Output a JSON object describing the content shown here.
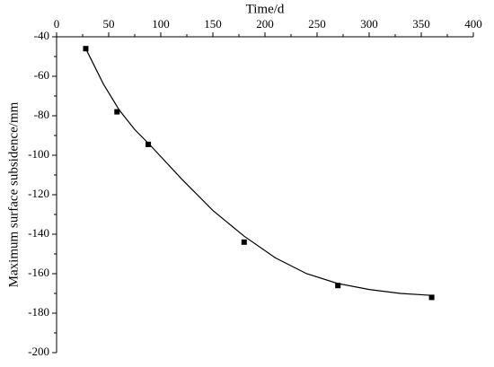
{
  "chart_data": {
    "type": "scatter",
    "x_label": "Time/d",
    "y_label": "Maximum surface subsidence/mm",
    "x": [
      28,
      58,
      88,
      180,
      270,
      360
    ],
    "series": [
      {
        "values": [
          -46,
          -78,
          -94.5,
          -144,
          -166,
          -172
        ],
        "color": "#000000"
      }
    ],
    "fit": {
      "x": [
        28,
        45,
        60,
        75,
        90,
        120,
        150,
        180,
        210,
        240,
        270,
        300,
        330,
        360
      ],
      "y": [
        -46,
        -64,
        -77,
        -87,
        -95,
        -112,
        -128,
        -141,
        -152,
        -160,
        -165,
        -168,
        -170,
        -171
      ],
      "color": "#000000"
    },
    "xlim": [
      0,
      400
    ],
    "xticks": [
      0,
      50,
      100,
      150,
      200,
      250,
      300,
      350,
      400
    ],
    "ylim": [
      -200,
      -40
    ],
    "yticks": [
      -200,
      -180,
      -160,
      -140,
      -120,
      -100,
      -80,
      -60,
      -40
    ]
  }
}
